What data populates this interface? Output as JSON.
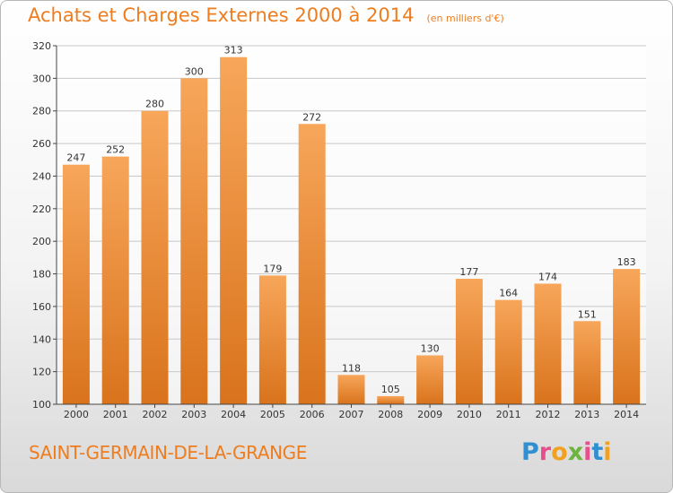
{
  "title": "Achats et Charges Externes 2000 à 2014",
  "subtitle": "(en milliers d'€)",
  "commune": "SAINT-GERMAIN-DE-LA-GRANGE",
  "logo": {
    "text": "Proxiti",
    "letter_colors": [
      "#2f8fd1",
      "#e94e8c",
      "#f0a11f",
      "#6cb33f",
      "#e94e8c",
      "#2f8fd1",
      "#f0a11f"
    ]
  },
  "colors": {
    "accent": "#ee7d1f",
    "bar_light": "#f7a65a",
    "bar_dark": "#d9731c"
  },
  "chart_data": {
    "type": "bar",
    "title": "Achats et Charges Externes 2000 à 2014",
    "subtitle": "(en milliers d'€)",
    "xlabel": "",
    "ylabel": "",
    "categories": [
      "2000",
      "2001",
      "2002",
      "2003",
      "2004",
      "2005",
      "2006",
      "2007",
      "2008",
      "2009",
      "2010",
      "2011",
      "2012",
      "2013",
      "2014"
    ],
    "values": [
      247,
      252,
      280,
      300,
      313,
      179,
      272,
      118,
      105,
      130,
      177,
      164,
      174,
      151,
      183
    ],
    "ylim": [
      100,
      320
    ],
    "yticks": [
      100,
      120,
      140,
      160,
      180,
      200,
      220,
      240,
      260,
      280,
      300,
      320
    ],
    "grid": true,
    "data_labels": true
  }
}
